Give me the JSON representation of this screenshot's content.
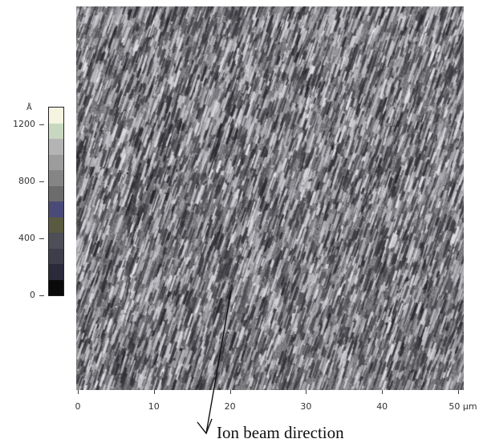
{
  "colorbar": {
    "unit": "Å",
    "ticks": [
      {
        "label": "1200",
        "value": 1200
      },
      {
        "label": "800",
        "value": 800
      },
      {
        "label": "400",
        "value": 400
      },
      {
        "label": "0",
        "value": 0
      }
    ],
    "range": [
      0,
      1330
    ],
    "colors": [
      "#0a0a0a",
      "#2a2a3a",
      "#3e3e4a",
      "#4e4e58",
      "#5a5a40",
      "#4a4a78",
      "#6c6c6c",
      "#858585",
      "#9c9c9c",
      "#b4b4b4",
      "#c8d8c0",
      "#f4f4e0"
    ]
  },
  "x_axis": {
    "ticks": [
      "0",
      "10",
      "20",
      "30",
      "40",
      "50 µm"
    ],
    "values": [
      0,
      10,
      20,
      30,
      40,
      50
    ]
  },
  "annotation": {
    "label": "Ion beam direction"
  }
}
